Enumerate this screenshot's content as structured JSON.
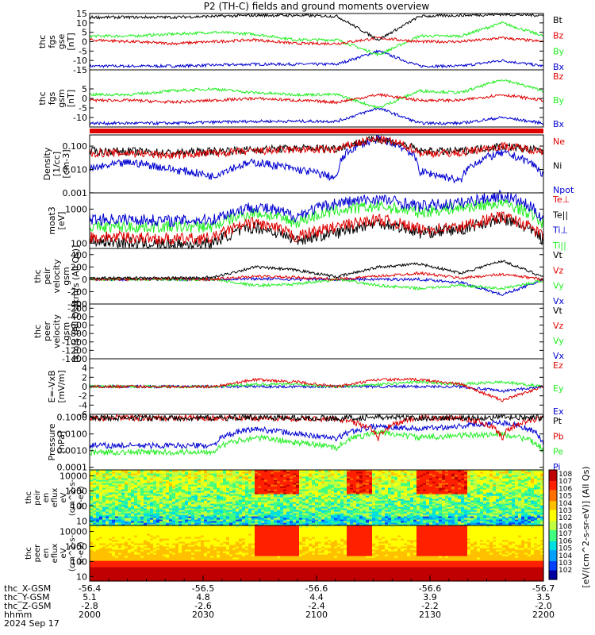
{
  "title": "P2 (TH-C) fields and ground moments overview",
  "colors": {
    "black": "#000000",
    "red": "#e00000",
    "green": "#22ee22",
    "blue": "#0000d0",
    "spectro_bg": "#f2e050"
  },
  "chart_data": [
    {
      "type": "line",
      "id": "fgs_gse",
      "ylabel": [
        "thc",
        "fgs",
        "gse",
        "[nT]"
      ],
      "ylim": [
        -15,
        15
      ],
      "yticks": [
        "15",
        "10",
        "5",
        "0",
        "-5",
        "-10",
        "-15"
      ],
      "series": [
        {
          "name": "Bt",
          "color": "black"
        },
        {
          "name": "Bz",
          "color": "red"
        },
        {
          "name": "By",
          "color": "green"
        },
        {
          "name": "Bx",
          "color": "blue"
        }
      ],
      "anchors": {
        "Bt": [
          13,
          13,
          13,
          13.5,
          14,
          14,
          13.5,
          1,
          13.5,
          14,
          14.5,
          14
        ],
        "Bz": [
          1,
          0,
          -1,
          0,
          1,
          -1,
          -1,
          2,
          0,
          0,
          2,
          0
        ],
        "By": [
          3,
          3,
          4,
          5,
          4,
          1,
          1,
          -7,
          3,
          3,
          10,
          3
        ],
        "Bx": [
          -13,
          -13,
          -13,
          -12.5,
          -12,
          -12,
          -12,
          -5,
          -13,
          -13,
          -10,
          -13
        ]
      }
    },
    {
      "type": "line",
      "id": "fgs_gsm",
      "ylabel": [
        "thc",
        "fgs",
        "gsm",
        "[nT]"
      ],
      "ylim": [
        -15,
        15
      ],
      "yticks": [
        "5",
        "0",
        "-5",
        "-10"
      ],
      "series": [
        {
          "name": "Bz",
          "color": "red"
        },
        {
          "name": "By",
          "color": "green"
        },
        {
          "name": "Bx",
          "color": "blue"
        }
      ],
      "anchors": {
        "Bz": [
          -1,
          -1,
          -2,
          -1,
          0,
          -1,
          -2,
          2,
          -1,
          -1,
          2,
          -1
        ],
        "By": [
          2,
          2,
          4,
          5,
          3,
          2,
          2,
          -5,
          4,
          3,
          10,
          4
        ],
        "Bx": [
          -13,
          -13,
          -13,
          -12.5,
          -12,
          -12,
          -12,
          -5,
          -13,
          -13,
          -10,
          -13
        ]
      }
    },
    {
      "type": "line",
      "id": "density",
      "log": true,
      "ylabel": [
        "Density",
        "[1/cc]",
        "[cm-3]"
      ],
      "ylim": [
        0.001,
        0.3
      ],
      "yticks": [
        "0.100",
        "0.010",
        "0.001"
      ],
      "series": [
        {
          "name": "Ne",
          "color": "red"
        },
        {
          "name": "Ni",
          "color": "black"
        },
        {
          "name": "Npot",
          "color": "blue"
        }
      ],
      "anchors": {
        "Ne": [
          0.05,
          0.05,
          0.04,
          0.05,
          0.06,
          0.07,
          0.07,
          0.2,
          0.05,
          0.05,
          0.1,
          0.06
        ],
        "Ni": [
          0.06,
          0.06,
          0.05,
          0.06,
          0.07,
          0.08,
          0.08,
          0.2,
          0.06,
          0.06,
          0.1,
          0.06
        ],
        "Npot": [
          0.01,
          0.02,
          0.01,
          0.005,
          0.02,
          0.01,
          0.004,
          0.2,
          0.008,
          0.003,
          0.05,
          0.005
        ]
      }
    },
    {
      "type": "line",
      "id": "temp",
      "log": true,
      "ylabel": [
        "moat3",
        "[eV]"
      ],
      "ylim": [
        70,
        3000
      ],
      "yticks": [
        "1000",
        "100"
      ],
      "series": [
        {
          "name": "Te⊥",
          "color": "red"
        },
        {
          "name": "Te||",
          "color": "black"
        },
        {
          "name": "Ti⊥",
          "color": "blue"
        },
        {
          "name": "Ti||",
          "color": "green"
        }
      ],
      "anchors": {
        "Te⊥": [
          150,
          150,
          130,
          140,
          400,
          150,
          300,
          500,
          250,
          300,
          600,
          150
        ],
        "Te||": [
          120,
          100,
          90,
          100,
          300,
          120,
          200,
          400,
          200,
          250,
          500,
          120
        ],
        "Ti⊥": [
          500,
          500,
          450,
          500,
          1200,
          600,
          1500,
          2000,
          1200,
          1500,
          2500,
          500
        ],
        "Ti||": [
          300,
          300,
          300,
          300,
          800,
          400,
          900,
          1200,
          800,
          1100,
          1500,
          350
        ]
      }
    },
    {
      "type": "line",
      "id": "peir_vel",
      "ylabel": [
        "thc",
        "peir",
        "velocity",
        "gsm",
        "[km/s (All Qs)]"
      ],
      "ylim": [
        -400,
        500
      ],
      "yticks": [
        "400",
        "200",
        "0",
        "-200",
        "-400"
      ],
      "series": [
        {
          "name": "Vt",
          "color": "black"
        },
        {
          "name": "Vz",
          "color": "red"
        },
        {
          "name": "Vy",
          "color": "green"
        },
        {
          "name": "Vx",
          "color": "blue"
        }
      ],
      "anchors": {
        "Vt": [
          20,
          20,
          20,
          30,
          200,
          150,
          40,
          200,
          250,
          100,
          300,
          40
        ],
        "Vz": [
          5,
          0,
          10,
          0,
          50,
          30,
          0,
          50,
          100,
          20,
          80,
          0
        ],
        "Vy": [
          0,
          0,
          -10,
          0,
          -100,
          -80,
          0,
          -100,
          -150,
          -100,
          -150,
          -20
        ],
        "Vx": [
          0,
          0,
          0,
          0,
          10,
          0,
          0,
          0,
          0,
          -50,
          -250,
          -10
        ]
      }
    },
    {
      "type": "line",
      "id": "peer_vel",
      "ylabel": [
        "thc",
        "peer",
        "velocity",
        "gsm",
        "[km/s (All Qs)]"
      ],
      "ylim": [
        -1400,
        -100
      ],
      "yticks": [
        "-200",
        "-400",
        "-600",
        "-800",
        "-1000",
        "-1200",
        "-1400"
      ],
      "series": [
        {
          "name": "Vt",
          "color": "black"
        },
        {
          "name": "Vz",
          "color": "red"
        },
        {
          "name": "Vy",
          "color": "green"
        },
        {
          "name": "Vx",
          "color": "blue"
        }
      ],
      "anchors": {}
    },
    {
      "type": "line",
      "id": "efield",
      "ylabel": [
        "E=-VxB",
        "[mV/m]"
      ],
      "ylim": [
        -6,
        6
      ],
      "yticks": [
        "4",
        "2",
        "0",
        "-2",
        "-4",
        "-6"
      ],
      "series": [
        {
          "name": "Ez",
          "color": "red"
        },
        {
          "name": "Ey",
          "color": "green"
        },
        {
          "name": "Ex",
          "color": "blue"
        }
      ],
      "anchors": {
        "Ez": [
          0,
          0,
          0,
          0,
          1.5,
          1,
          0,
          1.5,
          1.5,
          0.5,
          -3,
          0
        ],
        "Ey": [
          0,
          0,
          0,
          0,
          0.5,
          0.5,
          0,
          0.5,
          1,
          0.5,
          1,
          0
        ],
        "Ex": [
          0,
          0,
          0,
          0,
          0,
          0,
          0,
          0,
          0,
          0,
          -1,
          0
        ]
      }
    },
    {
      "type": "line",
      "id": "pressure",
      "log": true,
      "ylabel": [
        "Pressure",
        "[nPa]"
      ],
      "ylim": [
        7e-05,
        0.15
      ],
      "yticks": [
        "0.1000",
        "0.0100",
        "0.0010",
        "0.0001"
      ],
      "series": [
        {
          "name": "Pt",
          "color": "black"
        },
        {
          "name": "Pb",
          "color": "red"
        },
        {
          "name": "Pe",
          "color": "green"
        },
        {
          "name": "Pi",
          "color": "blue"
        }
      ],
      "anchors": {
        "Pt": [
          0.09,
          0.09,
          0.09,
          0.09,
          0.1,
          0.09,
          0.09,
          0.1,
          0.09,
          0.09,
          0.1,
          0.09
        ],
        "Pb": [
          0.09,
          0.09,
          0.09,
          0.09,
          0.09,
          0.08,
          0.08,
          0.005,
          0.09,
          0.09,
          0.005,
          0.09
        ],
        "Pe": [
          0.0008,
          0.0008,
          0.0008,
          0.0009,
          0.006,
          0.003,
          0.0015,
          0.012,
          0.006,
          0.008,
          0.01,
          0.0009
        ],
        "Pi": [
          0.002,
          0.002,
          0.002,
          0.002,
          0.02,
          0.01,
          0.005,
          0.03,
          0.02,
          0.03,
          0.05,
          0.002
        ]
      }
    },
    {
      "type": "heatmap",
      "id": "peir_en",
      "ylabel": [
        "thc",
        "peir",
        "en",
        "eflux",
        "eV",
        "(cm^2-s-",
        "sr-eV)"
      ],
      "ylim": [
        5,
        25000
      ],
      "yticks": [
        "10000",
        "1000",
        "100",
        "10"
      ]
    },
    {
      "type": "heatmap",
      "id": "peer_en",
      "ylabel": [
        "thc",
        "peer",
        "en",
        "eflux",
        "eV",
        "(cm^2-s-",
        "sr-eV)"
      ],
      "ylim": [
        5,
        25000
      ],
      "yticks": [
        "10000",
        "1000",
        "100",
        "10"
      ]
    }
  ],
  "colorbar": {
    "label": "[eV/(cm^2-s-sr-eV)] (All Qs)",
    "top_labels": [
      "10^8",
      "10^7",
      "10^6",
      "10^5",
      "10^4",
      "10^3",
      "10^2"
    ],
    "bottom_labels": [
      "10^8",
      "10^7",
      "10^6",
      "10^5",
      "10^4",
      "10^3",
      "10^2"
    ]
  },
  "x_axis": {
    "rows": [
      {
        "label": "thc_X-GSM",
        "values": [
          "-56.4",
          "-56.5",
          "-56.6",
          "-56.6",
          "-56.7"
        ]
      },
      {
        "label": "thc_Y-GSM",
        "values": [
          "5.1",
          "4.8",
          "4.4",
          "3.9",
          "3.5"
        ]
      },
      {
        "label": "thc_Z-GSM",
        "values": [
          "-2.8",
          "-2.6",
          "-2.4",
          "-2.2",
          "-2.0"
        ]
      },
      {
        "label": "hhmm",
        "values": [
          "2000",
          "2030",
          "2100",
          "2130",
          "2200"
        ]
      }
    ],
    "date": "2024 Sep 17"
  }
}
